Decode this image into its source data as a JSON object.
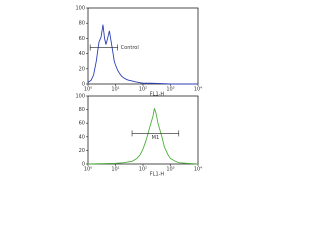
{
  "chart_data": [
    {
      "type": "line",
      "x_label": "FL1-H",
      "xscale": "log",
      "xlim": [
        1,
        10000
      ],
      "xticks": [
        {
          "value": 1,
          "label": "10⁰"
        },
        {
          "value": 10,
          "label": "10¹"
        },
        {
          "value": 100,
          "label": "10²"
        },
        {
          "value": 1000,
          "label": "10³"
        },
        {
          "value": 10000,
          "label": "10⁴"
        }
      ],
      "ylim": [
        0,
        100
      ],
      "yticks": [
        0,
        20,
        40,
        60,
        80,
        100
      ],
      "x": [
        1,
        1.3,
        1.6,
        2,
        2.5,
        3,
        3.5,
        4,
        4.5,
        5,
        6,
        7,
        8,
        9,
        10,
        12,
        14,
        17,
        20,
        25,
        30,
        40,
        50,
        70,
        100,
        200,
        1000,
        10000
      ],
      "series": [
        {
          "color": "#2b3fb5",
          "values": [
            2,
            5,
            12,
            30,
            55,
            62,
            78,
            60,
            52,
            58,
            70,
            55,
            42,
            30,
            25,
            18,
            14,
            10,
            8,
            6,
            5,
            4,
            3,
            2,
            1,
            1,
            0,
            0
          ]
        }
      ],
      "markers": [
        {
          "label": "Control",
          "range": [
            1.2,
            12
          ],
          "level": 48
        }
      ]
    },
    {
      "type": "line",
      "x_label": "FL1-H",
      "xscale": "log",
      "xlim": [
        1,
        10000
      ],
      "xticks": [
        {
          "value": 1,
          "label": "10⁰"
        },
        {
          "value": 10,
          "label": "10¹"
        },
        {
          "value": 100,
          "label": "10²"
        },
        {
          "value": 1000,
          "label": "10³"
        },
        {
          "value": 10000,
          "label": "10⁴"
        }
      ],
      "ylim": [
        0,
        100
      ],
      "yticks": [
        0,
        20,
        40,
        60,
        80,
        100
      ],
      "x": [
        1,
        10,
        20,
        40,
        60,
        80,
        100,
        130,
        160,
        200,
        230,
        260,
        300,
        350,
        400,
        500,
        600,
        800,
        1000,
        1500,
        2000,
        4000,
        10000
      ],
      "series": [
        {
          "color": "#4db03a",
          "values": [
            0,
            1,
            2,
            4,
            8,
            14,
            22,
            35,
            48,
            62,
            70,
            82,
            74,
            60,
            52,
            38,
            25,
            14,
            8,
            4,
            2,
            1,
            0
          ]
        }
      ],
      "markers": [
        {
          "label": "M1",
          "range": [
            40,
            2000
          ],
          "level": 45
        }
      ]
    }
  ]
}
